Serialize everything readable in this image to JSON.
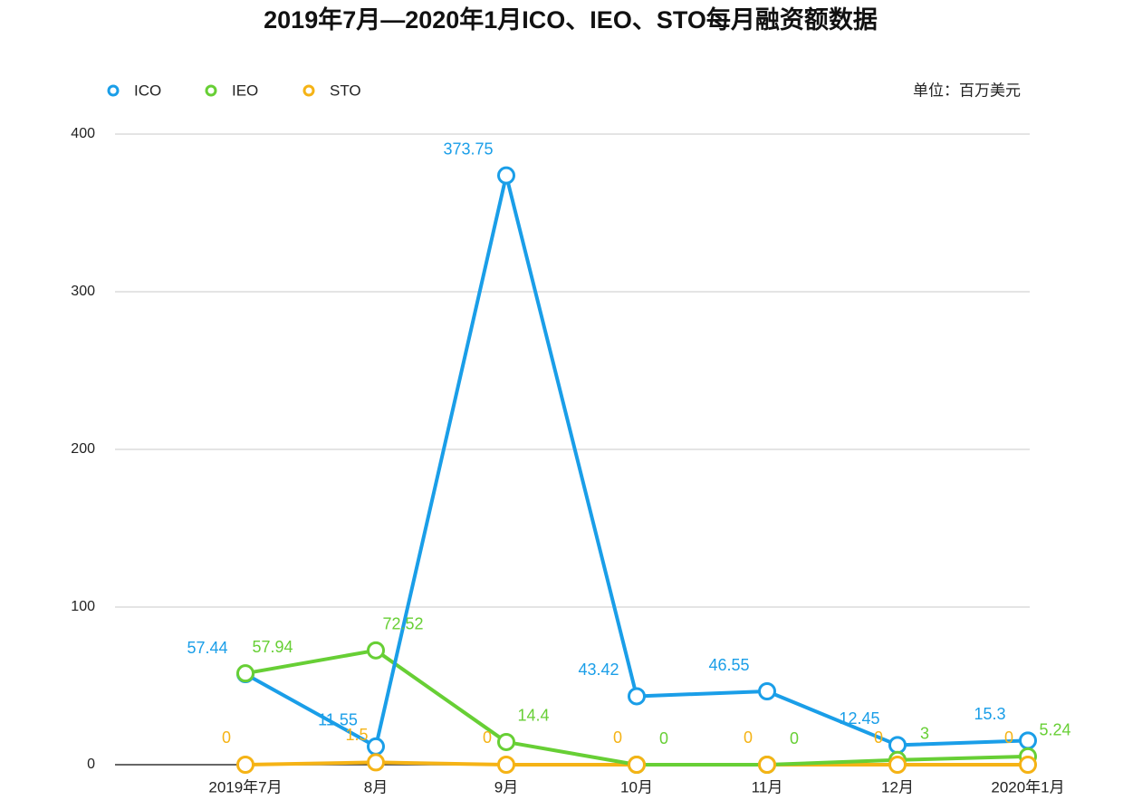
{
  "chart_data": {
    "type": "line",
    "title": "2019年7月—2020年1月ICO、IEO、STO每月融资额数据",
    "unit_label": "单位：百万美元",
    "categories": [
      "2019年7月",
      "8月",
      "9月",
      "10月",
      "11月",
      "12月",
      "2020年1月"
    ],
    "series": [
      {
        "name": "ICO",
        "color": "#1a9ee8",
        "values": [
          57.44,
          11.55,
          373.75,
          43.42,
          46.55,
          12.45,
          15.3
        ]
      },
      {
        "name": "IEO",
        "color": "#67cf35",
        "values": [
          57.94,
          72.52,
          14.4,
          0,
          0,
          3,
          5.24
        ]
      },
      {
        "name": "STO",
        "color": "#f5b315",
        "values": [
          0,
          1.5,
          0,
          0,
          0,
          0,
          0
        ]
      }
    ],
    "ylim": [
      0,
      400
    ],
    "yticks": [
      0,
      100,
      200,
      300,
      400
    ],
    "grid": true
  }
}
